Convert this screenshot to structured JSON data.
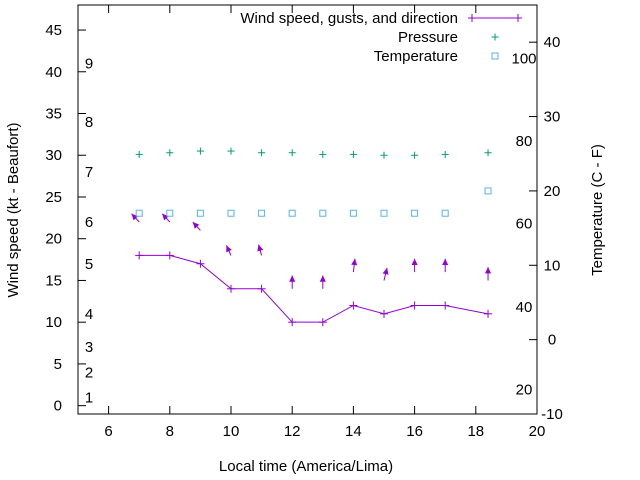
{
  "chart_data": {
    "type": "line",
    "xlabel": "Local time (America/Lima)",
    "ylabel_left": "Wind speed (kt - Beaufort)",
    "ylabel_right": "Temperature (C - F)",
    "xlim": [
      5,
      20
    ],
    "ylim_left": [
      -1,
      48
    ],
    "ylim_right": [
      -10,
      45
    ],
    "grid": false,
    "legend_position": "top-right",
    "x_ticks": [
      6,
      8,
      10,
      12,
      14,
      16,
      18,
      20
    ],
    "y_ticks_left": [
      0,
      5,
      10,
      15,
      20,
      25,
      30,
      35,
      40,
      45
    ],
    "y_ticks_right_celsius": [
      -10,
      0,
      10,
      20,
      30,
      40
    ],
    "beaufort_labels": [
      {
        "label": "1",
        "kt": 1
      },
      {
        "label": "2",
        "kt": 4
      },
      {
        "label": "3",
        "kt": 7
      },
      {
        "label": "4",
        "kt": 11
      },
      {
        "label": "5",
        "kt": 17
      },
      {
        "label": "6",
        "kt": 22
      },
      {
        "label": "7",
        "kt": 28
      },
      {
        "label": "8",
        "kt": 34
      },
      {
        "label": "9",
        "kt": 41
      }
    ],
    "fahrenheit_labels": [
      {
        "label": "20",
        "celsius": -6.7
      },
      {
        "label": "40",
        "celsius": 4.4
      },
      {
        "label": "60",
        "celsius": 15.6
      },
      {
        "label": "80",
        "celsius": 26.7
      },
      {
        "label": "100",
        "celsius": 37.8
      }
    ],
    "series": [
      {
        "name": "Wind speed, gusts, and direction",
        "color": "#9400d3",
        "axis": "left",
        "x": [
          7,
          8,
          9,
          10,
          11,
          12,
          13,
          14,
          15,
          16,
          17,
          18.4
        ],
        "values": [
          18,
          18,
          17,
          14,
          14,
          10,
          10,
          12,
          11,
          12,
          12,
          11
        ],
        "direction_arrows": [
          {
            "x": 7,
            "y": 22,
            "dx": -0.25,
            "dy": 1.0
          },
          {
            "x": 8,
            "y": 22,
            "dx": -0.25,
            "dy": 1.0
          },
          {
            "x": 9,
            "y": 21,
            "dx": -0.25,
            "dy": 1.0
          },
          {
            "x": 10,
            "y": 18,
            "dx": -0.15,
            "dy": 1.2
          },
          {
            "x": 11,
            "y": 18,
            "dx": -0.1,
            "dy": 1.3
          },
          {
            "x": 12,
            "y": 14,
            "dx": 0.0,
            "dy": 1.6
          },
          {
            "x": 13,
            "y": 14,
            "dx": 0.0,
            "dy": 1.6
          },
          {
            "x": 14,
            "y": 16,
            "dx": 0.05,
            "dy": 1.6
          },
          {
            "x": 15,
            "y": 15,
            "dx": 0.1,
            "dy": 1.5
          },
          {
            "x": 16,
            "y": 16,
            "dx": 0.0,
            "dy": 1.6
          },
          {
            "x": 17,
            "y": 16,
            "dx": 0.0,
            "dy": 1.6
          },
          {
            "x": 18.4,
            "y": 15,
            "dx": 0.0,
            "dy": 1.6
          }
        ]
      },
      {
        "name": "Pressure",
        "color": "#009e73",
        "axis": "left",
        "marker": "+",
        "x": [
          7,
          8,
          9,
          10,
          11,
          12,
          13,
          14,
          15,
          16,
          17,
          18.4
        ],
        "values": [
          30.1,
          30.3,
          30.5,
          30.5,
          30.3,
          30.3,
          30.1,
          30.1,
          30.0,
          30.0,
          30.1,
          30.3
        ]
      },
      {
        "name": "Temperature",
        "color": "#56b4e9",
        "axis": "right",
        "marker": "square",
        "x": [
          7,
          8,
          9,
          10,
          11,
          12,
          13,
          14,
          15,
          16,
          17,
          18.4
        ],
        "values": [
          17,
          17,
          17,
          17,
          17,
          17,
          17,
          17,
          17,
          17,
          17,
          20
        ]
      }
    ]
  }
}
